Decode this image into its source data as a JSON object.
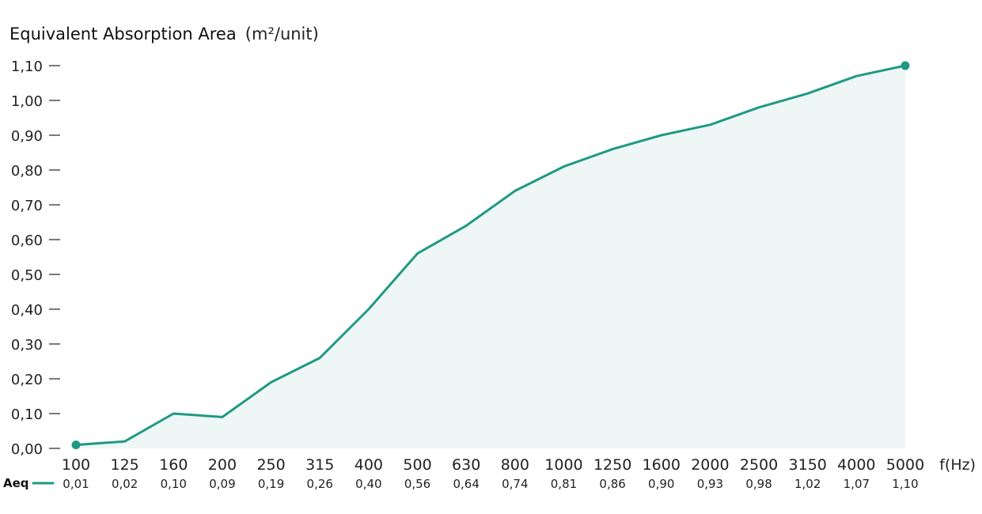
{
  "chart_data": {
    "type": "area",
    "title": "Equivalent Absorption Area",
    "title_unit": "(m²/unit)",
    "xlabel": "f(Hz)",
    "ylabel": "",
    "categories": [
      "100",
      "125",
      "160",
      "200",
      "250",
      "315",
      "400",
      "500",
      "630",
      "800",
      "1000",
      "1250",
      "1600",
      "2000",
      "2500",
      "3150",
      "4000",
      "5000"
    ],
    "series": [
      {
        "name": "Aeq",
        "values": [
          0.01,
          0.02,
          0.1,
          0.09,
          0.19,
          0.26,
          0.4,
          0.56,
          0.64,
          0.74,
          0.81,
          0.86,
          0.9,
          0.93,
          0.98,
          1.02,
          1.07,
          1.1
        ],
        "value_labels": [
          "0,01",
          "0,02",
          "0,10",
          "0,09",
          "0,19",
          "0,26",
          "0,40",
          "0,56",
          "0,64",
          "0,74",
          "0,81",
          "0,86",
          "0,90",
          "0,93",
          "0,98",
          "1,02",
          "1,07",
          "1,10"
        ],
        "color": "#1f9a82",
        "fill": "#eef7f5"
      }
    ],
    "ylim": [
      0,
      1.1
    ],
    "yticks": [
      0,
      0.1,
      0.2,
      0.3,
      0.4,
      0.5,
      0.6,
      0.7,
      0.8,
      0.9,
      1.0,
      1.1
    ],
    "ytick_labels": [
      "0,00",
      "0,10",
      "0,20",
      "0,30",
      "0,40",
      "0,50",
      "0,60",
      "0,70",
      "0,80",
      "0,90",
      "1,00",
      "1,10"
    ],
    "grid": false,
    "legend": "bottom-left"
  }
}
